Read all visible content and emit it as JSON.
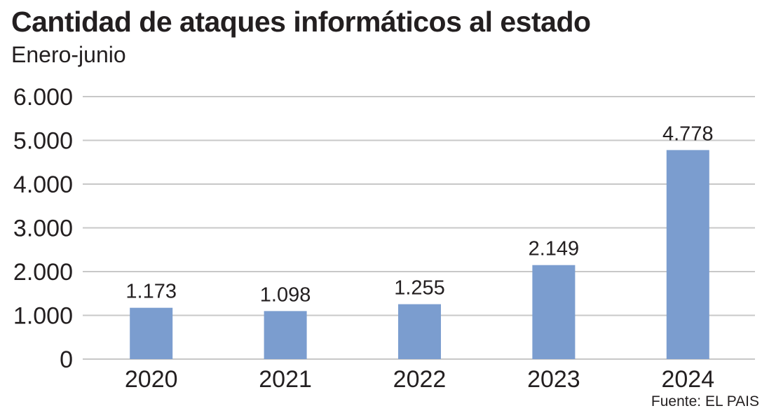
{
  "chart_data": {
    "type": "bar",
    "title": "Cantidad de ataques informáticos al estado",
    "subtitle": "Enero-junio",
    "categories": [
      "2020",
      "2021",
      "2022",
      "2023",
      "2024"
    ],
    "values": [
      1173,
      1098,
      1255,
      2149,
      4778
    ],
    "value_labels": [
      "1.173",
      "1.098",
      "1.255",
      "2.149",
      "4.778"
    ],
    "ylim": [
      0,
      6000
    ],
    "yticks": [
      0,
      1000,
      2000,
      3000,
      4000,
      5000,
      6000
    ],
    "ytick_labels": [
      "0",
      "1.000",
      "2.000",
      "3.000",
      "4.000",
      "5.000",
      "6.000"
    ],
    "grid": true,
    "bar_color": "#7b9dcf",
    "grid_color": "#c8c8c8"
  },
  "source": "Fuente: EL PAIS"
}
